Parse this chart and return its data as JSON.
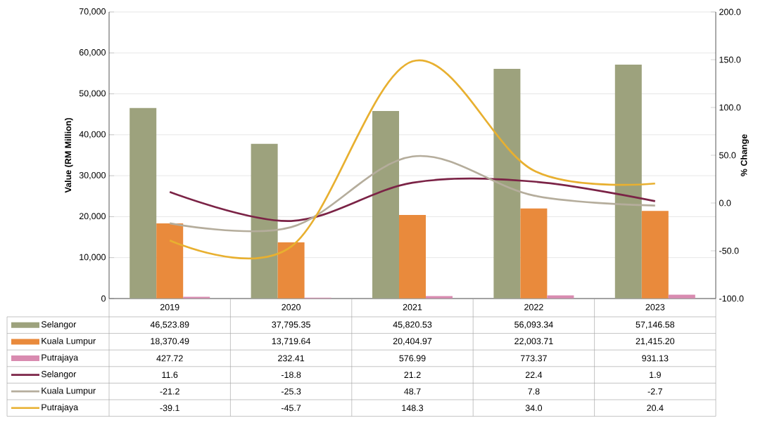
{
  "chart_data": {
    "type": "bar",
    "categories": [
      "2019",
      "2020",
      "2021",
      "2022",
      "2023"
    ],
    "ylabel": "Value (RM Million)",
    "y2label": "% Change",
    "ylim": [
      0,
      70000
    ],
    "yticks": [
      0,
      {
        "value": 10000,
        "label": "10,000"
      },
      {
        "value": 20000,
        "label": "20,000"
      },
      {
        "value": 30000,
        "label": "30,000"
      },
      {
        "value": 40000,
        "label": "40,000"
      },
      {
        "value": 50000,
        "label": "50,000"
      },
      {
        "value": 60000,
        "label": "60,000"
      },
      {
        "value": 70000,
        "label": "70,000"
      }
    ],
    "y2lim": [
      -100,
      200
    ],
    "y2ticks": [
      {
        "value": -100,
        "label": "-100.0"
      },
      {
        "value": -50,
        "label": "-50.0"
      },
      {
        "value": 0,
        "label": "0.0"
      },
      {
        "value": 50,
        "label": "50.0"
      },
      {
        "value": 100,
        "label": "100.0"
      },
      {
        "value": 150,
        "label": "150.0"
      },
      {
        "value": 200,
        "label": "200.0"
      }
    ],
    "grid": "y",
    "legend": "bottom",
    "series": [
      {
        "name": "Selangor",
        "color": "#9da27d",
        "values": [
          46523.89,
          37795.35,
          45820.53,
          56093.34,
          57146.58
        ],
        "value_labels": [
          "46,523.89",
          "37,795.35",
          "45,820.53",
          "56,093.34",
          "57,146.58"
        ]
      },
      {
        "name": "Kuala Lumpur",
        "color": "#e98a3c",
        "values": [
          18370.49,
          13719.64,
          20404.97,
          22003.71,
          21415.2
        ],
        "value_labels": [
          "18,370.49",
          "13,719.64",
          "20,404.97",
          "22,003.71",
          "21,415.20"
        ]
      },
      {
        "name": "Putrajaya",
        "color": "#d98bb0",
        "values": [
          427.72,
          232.41,
          576.99,
          773.37,
          931.13
        ],
        "value_labels": [
          "427.72",
          "232.41",
          "576.99",
          "773.37",
          "931.13"
        ]
      },
      {
        "name": "Selangor",
        "type": "line",
        "axis": "y2",
        "color": "#7b2346",
        "values": [
          11.6,
          -18.8,
          21.2,
          22.4,
          1.9
        ],
        "value_labels": [
          "11.6",
          "-18.8",
          "21.2",
          "22.4",
          "1.9"
        ]
      },
      {
        "name": "Kuala Lumpur",
        "type": "line",
        "axis": "y2",
        "color": "#b5ad9c",
        "values": [
          -21.2,
          -25.3,
          48.7,
          7.8,
          -2.7
        ],
        "value_labels": [
          "-21.2",
          "-25.3",
          "48.7",
          "7.8",
          "-2.7"
        ]
      },
      {
        "name": "Putrajaya",
        "type": "line",
        "axis": "y2",
        "color": "#e8b030",
        "values": [
          -39.1,
          -45.7,
          148.3,
          34.0,
          20.4
        ],
        "value_labels": [
          "-39.1",
          "-45.7",
          "148.3",
          "34.0",
          "20.4"
        ]
      }
    ]
  }
}
